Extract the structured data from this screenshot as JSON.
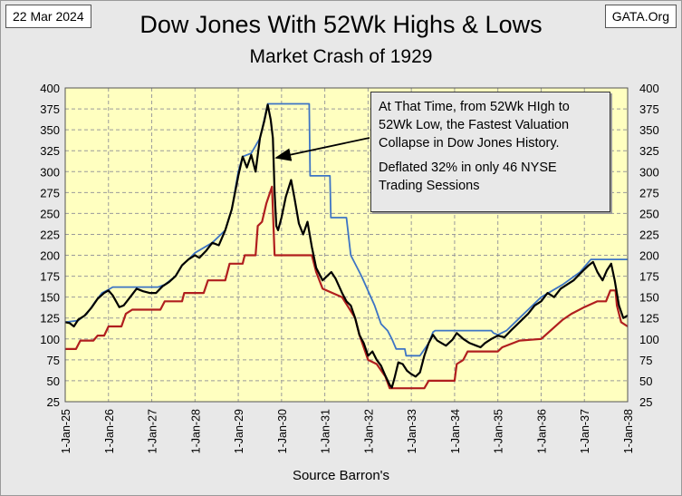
{
  "header": {
    "date_stamp": "22 Mar 2024",
    "site_stamp": "GATA.Org",
    "title": "Dow Jones With 52Wk Highs & Lows",
    "subtitle": "Market Crash of 1929"
  },
  "footer": {
    "source": "Source Barron's"
  },
  "annotation": {
    "text1": "At That Time, from 52Wk HIgh to 52Wk Low, the Fastest Valuation Collapse in Dow Jones History.",
    "text2": "Deflated 32% in only 46 NYSE Trading Sessions"
  },
  "colors": {
    "plot_bg": "#ffffc0",
    "dow": "#000000",
    "high": "#3d74c4",
    "low": "#b01e1e",
    "grid": "#9a9a9a"
  },
  "chart_data": {
    "type": "line",
    "title": "Dow Jones With 52Wk Highs & Lows",
    "subtitle": "Market Crash of 1929",
    "ylim": [
      25,
      400
    ],
    "xlim": [
      1925,
      1938
    ],
    "y_ticks": [
      25,
      50,
      75,
      100,
      125,
      150,
      175,
      200,
      225,
      250,
      275,
      300,
      325,
      350,
      375,
      400
    ],
    "x_ticks": [
      {
        "value": 1925,
        "label": "1-Jan-25"
      },
      {
        "value": 1926,
        "label": "1-Jan-26"
      },
      {
        "value": 1927,
        "label": "1-Jan-27"
      },
      {
        "value": 1928,
        "label": "1-Jan-28"
      },
      {
        "value": 1929,
        "label": "1-Jan-29"
      },
      {
        "value": 1930,
        "label": "1-Jan-30"
      },
      {
        "value": 1931,
        "label": "1-Jan-31"
      },
      {
        "value": 1932,
        "label": "1-Jan-32"
      },
      {
        "value": 1933,
        "label": "1-Jan-33"
      },
      {
        "value": 1934,
        "label": "1-Jan-34"
      },
      {
        "value": 1935,
        "label": "1-Jan-35"
      },
      {
        "value": 1936,
        "label": "1-Jan-36"
      },
      {
        "value": 1937,
        "label": "1-Jan-37"
      },
      {
        "value": 1938,
        "label": "1-Jan-38"
      }
    ],
    "grid": true,
    "right_axis_mirror": true,
    "series": [
      {
        "key": "dow",
        "points": [
          [
            1925.0,
            120
          ],
          [
            1925.1,
            119
          ],
          [
            1925.2,
            115
          ],
          [
            1925.3,
            123
          ],
          [
            1925.45,
            128
          ],
          [
            1925.6,
            137
          ],
          [
            1925.75,
            148
          ],
          [
            1925.9,
            155
          ],
          [
            1926.0,
            158
          ],
          [
            1926.1,
            152
          ],
          [
            1926.25,
            138
          ],
          [
            1926.35,
            140
          ],
          [
            1926.5,
            150
          ],
          [
            1926.65,
            160
          ],
          [
            1926.8,
            157
          ],
          [
            1926.95,
            155
          ],
          [
            1927.1,
            155
          ],
          [
            1927.25,
            163
          ],
          [
            1927.4,
            168
          ],
          [
            1927.55,
            175
          ],
          [
            1927.7,
            188
          ],
          [
            1927.85,
            195
          ],
          [
            1928.0,
            200
          ],
          [
            1928.1,
            197
          ],
          [
            1928.25,
            205
          ],
          [
            1928.4,
            215
          ],
          [
            1928.55,
            212
          ],
          [
            1928.7,
            230
          ],
          [
            1928.85,
            255
          ],
          [
            1929.0,
            295
          ],
          [
            1929.1,
            318
          ],
          [
            1929.2,
            305
          ],
          [
            1929.3,
            320
          ],
          [
            1929.4,
            300
          ],
          [
            1929.5,
            340
          ],
          [
            1929.6,
            360
          ],
          [
            1929.68,
            380
          ],
          [
            1929.75,
            362
          ],
          [
            1929.8,
            340
          ],
          [
            1929.84,
            275
          ],
          [
            1929.88,
            235
          ],
          [
            1929.92,
            230
          ],
          [
            1930.0,
            245
          ],
          [
            1930.1,
            270
          ],
          [
            1930.22,
            290
          ],
          [
            1930.3,
            268
          ],
          [
            1930.4,
            238
          ],
          [
            1930.5,
            225
          ],
          [
            1930.6,
            240
          ],
          [
            1930.7,
            210
          ],
          [
            1930.8,
            185
          ],
          [
            1930.95,
            170
          ],
          [
            1931.05,
            175
          ],
          [
            1931.15,
            180
          ],
          [
            1931.25,
            172
          ],
          [
            1931.4,
            155
          ],
          [
            1931.5,
            145
          ],
          [
            1931.6,
            140
          ],
          [
            1931.7,
            125
          ],
          [
            1931.8,
            105
          ],
          [
            1931.9,
            95
          ],
          [
            1932.0,
            80
          ],
          [
            1932.1,
            85
          ],
          [
            1932.2,
            75
          ],
          [
            1932.3,
            68
          ],
          [
            1932.4,
            56
          ],
          [
            1932.5,
            45
          ],
          [
            1932.55,
            42
          ],
          [
            1932.62,
            55
          ],
          [
            1932.7,
            72
          ],
          [
            1932.8,
            70
          ],
          [
            1932.9,
            62
          ],
          [
            1933.0,
            58
          ],
          [
            1933.1,
            55
          ],
          [
            1933.2,
            60
          ],
          [
            1933.3,
            80
          ],
          [
            1933.4,
            95
          ],
          [
            1933.5,
            105
          ],
          [
            1933.6,
            98
          ],
          [
            1933.7,
            95
          ],
          [
            1933.8,
            92
          ],
          [
            1933.95,
            99
          ],
          [
            1934.05,
            107
          ],
          [
            1934.2,
            100
          ],
          [
            1934.35,
            95
          ],
          [
            1934.5,
            92
          ],
          [
            1934.6,
            90
          ],
          [
            1934.7,
            95
          ],
          [
            1934.85,
            100
          ],
          [
            1935.0,
            104
          ],
          [
            1935.15,
            102
          ],
          [
            1935.3,
            110
          ],
          [
            1935.5,
            120
          ],
          [
            1935.7,
            130
          ],
          [
            1935.85,
            140
          ],
          [
            1936.0,
            145
          ],
          [
            1936.15,
            155
          ],
          [
            1936.3,
            150
          ],
          [
            1936.45,
            160
          ],
          [
            1936.6,
            165
          ],
          [
            1936.75,
            170
          ],
          [
            1936.9,
            178
          ],
          [
            1937.0,
            183
          ],
          [
            1937.1,
            188
          ],
          [
            1937.2,
            192
          ],
          [
            1937.3,
            180
          ],
          [
            1937.42,
            170
          ],
          [
            1937.52,
            182
          ],
          [
            1937.62,
            190
          ],
          [
            1937.7,
            170
          ],
          [
            1937.8,
            140
          ],
          [
            1937.9,
            125
          ],
          [
            1938.0,
            128
          ]
        ]
      },
      {
        "key": "high",
        "points": [
          [
            1925.0,
            120
          ],
          [
            1925.3,
            122
          ],
          [
            1925.5,
            130
          ],
          [
            1925.7,
            145
          ],
          [
            1925.85,
            155
          ],
          [
            1926.0,
            159
          ],
          [
            1926.1,
            162
          ],
          [
            1926.25,
            162
          ],
          [
            1926.6,
            162
          ],
          [
            1927.15,
            162
          ],
          [
            1927.3,
            165
          ],
          [
            1927.55,
            175
          ],
          [
            1927.7,
            188
          ],
          [
            1927.85,
            195
          ],
          [
            1928.0,
            203
          ],
          [
            1928.4,
            215
          ],
          [
            1928.7,
            230
          ],
          [
            1928.85,
            255
          ],
          [
            1929.0,
            300
          ],
          [
            1929.1,
            318
          ],
          [
            1929.3,
            322
          ],
          [
            1929.5,
            340
          ],
          [
            1929.6,
            362
          ],
          [
            1929.68,
            381
          ],
          [
            1930.5,
            381
          ],
          [
            1930.64,
            381
          ],
          [
            1930.66,
            295
          ],
          [
            1931.0,
            295
          ],
          [
            1931.12,
            295
          ],
          [
            1931.14,
            245
          ],
          [
            1931.5,
            245
          ],
          [
            1931.6,
            200
          ],
          [
            1931.85,
            175
          ],
          [
            1932.15,
            140
          ],
          [
            1932.3,
            118
          ],
          [
            1932.45,
            110
          ],
          [
            1932.55,
            100
          ],
          [
            1932.65,
            88
          ],
          [
            1932.85,
            88
          ],
          [
            1932.88,
            80
          ],
          [
            1933.2,
            80
          ],
          [
            1933.4,
            95
          ],
          [
            1933.5,
            108
          ],
          [
            1933.55,
            110
          ],
          [
            1934.0,
            110
          ],
          [
            1934.3,
            110
          ],
          [
            1934.6,
            110
          ],
          [
            1934.85,
            110
          ],
          [
            1934.9,
            107
          ],
          [
            1935.0,
            105
          ],
          [
            1935.2,
            110
          ],
          [
            1935.5,
            125
          ],
          [
            1935.8,
            140
          ],
          [
            1936.0,
            150
          ],
          [
            1936.5,
            165
          ],
          [
            1936.9,
            180
          ],
          [
            1937.0,
            186
          ],
          [
            1937.15,
            195
          ],
          [
            1938.0,
            195
          ]
        ]
      },
      {
        "key": "low",
        "points": [
          [
            1925.0,
            88
          ],
          [
            1925.25,
            88
          ],
          [
            1925.35,
            98
          ],
          [
            1925.65,
            98
          ],
          [
            1925.75,
            104
          ],
          [
            1925.9,
            104
          ],
          [
            1926.0,
            115
          ],
          [
            1926.3,
            115
          ],
          [
            1926.4,
            130
          ],
          [
            1926.55,
            135
          ],
          [
            1927.2,
            135
          ],
          [
            1927.3,
            145
          ],
          [
            1927.7,
            145
          ],
          [
            1927.75,
            155
          ],
          [
            1928.2,
            155
          ],
          [
            1928.3,
            170
          ],
          [
            1928.7,
            170
          ],
          [
            1928.8,
            190
          ],
          [
            1929.1,
            190
          ],
          [
            1929.15,
            200
          ],
          [
            1929.4,
            200
          ],
          [
            1929.45,
            235
          ],
          [
            1929.55,
            240
          ],
          [
            1929.65,
            262
          ],
          [
            1929.78,
            282
          ],
          [
            1929.84,
            200
          ],
          [
            1930.7,
            200
          ],
          [
            1930.8,
            180
          ],
          [
            1930.95,
            160
          ],
          [
            1931.4,
            150
          ],
          [
            1931.7,
            125
          ],
          [
            1931.8,
            105
          ],
          [
            1931.9,
            90
          ],
          [
            1932.0,
            75
          ],
          [
            1932.2,
            70
          ],
          [
            1932.4,
            55
          ],
          [
            1932.5,
            41
          ],
          [
            1933.3,
            41
          ],
          [
            1933.4,
            50
          ],
          [
            1934.0,
            50
          ],
          [
            1934.05,
            70
          ],
          [
            1934.2,
            75
          ],
          [
            1934.3,
            85
          ],
          [
            1935.0,
            85
          ],
          [
            1935.1,
            90
          ],
          [
            1935.5,
            98
          ],
          [
            1936.0,
            100
          ],
          [
            1936.5,
            123
          ],
          [
            1936.7,
            130
          ],
          [
            1937.0,
            138
          ],
          [
            1937.3,
            145
          ],
          [
            1937.5,
            145
          ],
          [
            1937.6,
            158
          ],
          [
            1937.72,
            158
          ],
          [
            1937.75,
            140
          ],
          [
            1937.85,
            120
          ],
          [
            1938.0,
            115
          ]
        ]
      }
    ]
  }
}
